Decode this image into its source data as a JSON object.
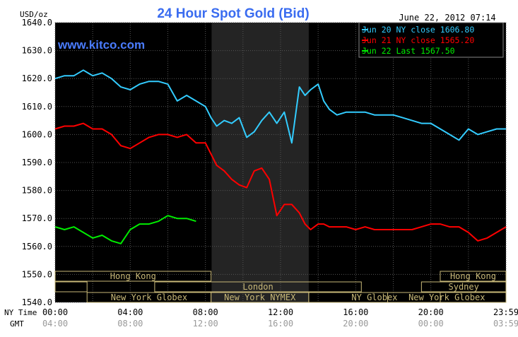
{
  "chart_data": {
    "type": "line",
    "title": "24 Hour Spot Gold (Bid)",
    "ylabel": "USD/oz",
    "watermark": "www.kitco.com",
    "timestamp": "June 22, 2012 07:14",
    "ylim": [
      1540,
      1640
    ],
    "xlim": [
      0,
      24
    ],
    "y_ticks": [
      "1640.0",
      "1630.0",
      "1620.0",
      "1610.0",
      "1600.0",
      "1590.0",
      "1580.0",
      "1570.0",
      "1560.0",
      "1550.0",
      "1540.0"
    ],
    "x_ticks_ny": [
      "00:00",
      "04:00",
      "08:00",
      "12:00",
      "16:00",
      "20:00",
      "23:59"
    ],
    "x_ticks_gmt": [
      "04:00",
      "08:00",
      "12:00",
      "16:00",
      "20:00",
      "00:00",
      "03:59"
    ],
    "x_label_ny": "NY Time",
    "x_label_gmt": "GMT",
    "grid": true,
    "legend_position": "top-right",
    "colors": {
      "background": "#000000",
      "grid": "#555555",
      "series1": "#33ccff",
      "series2": "#ff0000",
      "series3": "#00ee00",
      "title": "#3a6cf0",
      "watermark": "#4a7cff",
      "sessions": "#c8b878",
      "nymex_shade": "#242424"
    },
    "nymex_shade": [
      8.33,
      13.5
    ],
    "series": [
      {
        "name": "Jun 20 NY close 1606.80",
        "color": "#33ccff",
        "x": [
          0,
          0.5,
          1,
          1.5,
          2,
          2.5,
          3,
          3.5,
          4,
          4.5,
          5,
          5.5,
          6,
          6.5,
          7,
          7.5,
          8,
          8.3,
          8.6,
          9,
          9.4,
          9.8,
          10.2,
          10.6,
          11,
          11.4,
          11.8,
          12.2,
          12.6,
          13,
          13.3,
          13.6,
          14,
          14.3,
          14.6,
          15,
          15.5,
          16,
          16.5,
          17,
          17.5,
          18,
          18.5,
          19,
          19.5,
          20,
          20.5,
          21,
          21.5,
          22,
          22.5,
          23,
          23.5,
          24
        ],
        "y": [
          1620,
          1621,
          1621,
          1623,
          1621,
          1622,
          1620,
          1617,
          1616,
          1618,
          1619,
          1619,
          1618,
          1612,
          1614,
          1612,
          1610,
          1606,
          1603,
          1605,
          1604,
          1606,
          1599,
          1601,
          1605,
          1608,
          1604,
          1608,
          1597,
          1617,
          1614,
          1616,
          1618,
          1612,
          1609,
          1607,
          1608,
          1608,
          1608,
          1607,
          1607,
          1607,
          1606,
          1605,
          1604,
          1604,
          1602,
          1600,
          1598,
          1602,
          1600,
          1601,
          1602,
          1602
        ]
      },
      {
        "name": "Jun 21 NY close 1565.20",
        "color": "#ff0000",
        "x": [
          0,
          0.5,
          1,
          1.5,
          2,
          2.5,
          3,
          3.5,
          4,
          4.5,
          5,
          5.5,
          6,
          6.5,
          7,
          7.5,
          8,
          8.3,
          8.6,
          9,
          9.4,
          9.8,
          10.2,
          10.6,
          11,
          11.4,
          11.8,
          12.2,
          12.6,
          13,
          13.3,
          13.6,
          14,
          14.3,
          14.6,
          15,
          15.5,
          16,
          16.5,
          17,
          17.5,
          18,
          18.5,
          19,
          19.5,
          20,
          20.5,
          21,
          21.5,
          22,
          22.5,
          23,
          23.5,
          24
        ],
        "y": [
          1602,
          1603,
          1603,
          1604,
          1602,
          1602,
          1600,
          1596,
          1595,
          1597,
          1599,
          1600,
          1600,
          1599,
          1600,
          1597,
          1597,
          1593,
          1589,
          1587,
          1584,
          1582,
          1581,
          1587,
          1588,
          1584,
          1571,
          1575,
          1575,
          1572,
          1568,
          1566,
          1568,
          1568,
          1567,
          1567,
          1567,
          1566,
          1567,
          1566,
          1566,
          1566,
          1566,
          1566,
          1567,
          1568,
          1568,
          1567,
          1567,
          1565,
          1562,
          1563,
          1565,
          1567
        ]
      },
      {
        "name": "Jun 22 Last 1567.50",
        "color": "#00ee00",
        "x": [
          0,
          0.5,
          1,
          1.5,
          2,
          2.5,
          3,
          3.5,
          4,
          4.5,
          5,
          5.5,
          6,
          6.5,
          7,
          7.5
        ],
        "y": [
          1567,
          1566,
          1567,
          1565,
          1563,
          1564,
          1562,
          1561,
          1566,
          1568,
          1568,
          1569,
          1571,
          1570,
          1570,
          1569
        ]
      }
    ],
    "sessions": [
      {
        "label": "Hong Kong",
        "start": 0,
        "end": 8.3,
        "row": 0
      },
      {
        "label": "",
        "start": 0,
        "end": 1.7,
        "row": 1
      },
      {
        "label": "London",
        "start": 5.3,
        "end": 16.3,
        "row": 1
      },
      {
        "label": "New York Globex",
        "start": 1.7,
        "end": 8.3,
        "row": 2
      },
      {
        "label": "New York NYMEX",
        "start": 8.3,
        "end": 13.5,
        "row": 2
      },
      {
        "label": "NY Globex",
        "start": 13.5,
        "end": 20.5,
        "row": 2
      },
      {
        "label": "Hong Kong",
        "start": 20.5,
        "end": 24,
        "row": 0
      },
      {
        "label": "Sydney",
        "start": 19.5,
        "end": 24,
        "row": 1
      },
      {
        "label": "New York Globex",
        "start": 17.7,
        "end": 24,
        "row": 2
      }
    ]
  }
}
